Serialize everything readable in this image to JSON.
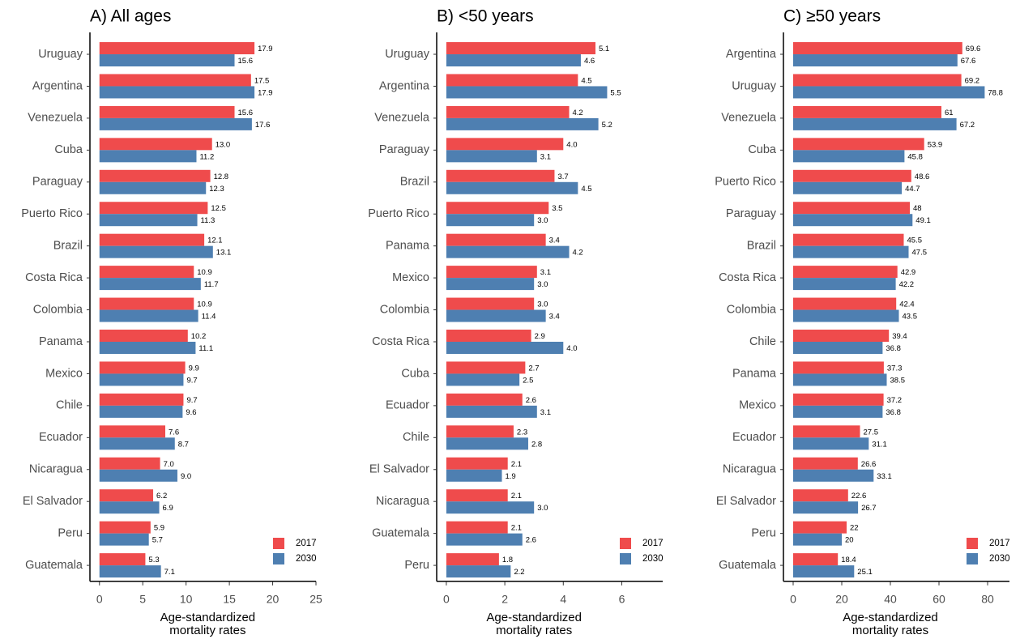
{
  "chart_data": [
    {
      "type": "bar",
      "orientation": "horizontal",
      "title": "A) All ages",
      "xlabel": "Age-standardized mortality rates",
      "categories": [
        "Uruguay",
        "Argentina",
        "Venezuela",
        "Cuba",
        "Paraguay",
        "Puerto Rico",
        "Brazil",
        "Costa Rica",
        "Colombia",
        "Panama",
        "Mexico",
        "Chile",
        "Ecuador",
        "Nicaragua",
        "El Salvador",
        "Peru",
        "Guatemala"
      ],
      "series": [
        {
          "name": "2017",
          "color": "#ef4b4c",
          "values": [
            17.9,
            17.5,
            15.6,
            13.0,
            12.8,
            12.5,
            12.1,
            10.9,
            10.9,
            10.2,
            9.9,
            9.7,
            7.6,
            7.0,
            6.2,
            5.9,
            5.3
          ],
          "value_labels": [
            "17.9",
            "17.5",
            "15.6",
            "13.0",
            "12.8",
            "12.5",
            "12.1",
            "10.9",
            "10.9",
            "10.2",
            "9.9",
            "9.7",
            "7.6",
            "7.0",
            "6.2",
            "5.9",
            "5.3"
          ]
        },
        {
          "name": "2030",
          "color": "#4e7fb1",
          "values": [
            15.6,
            17.9,
            17.6,
            11.2,
            12.3,
            11.3,
            13.1,
            11.7,
            11.4,
            11.1,
            9.7,
            9.6,
            8.7,
            9.0,
            6.9,
            5.7,
            7.1
          ],
          "value_labels": [
            "15.6",
            "17.9",
            "17.6",
            "11.2",
            "12.3",
            "11.3",
            "13.1",
            "11.7",
            "11.4",
            "11.1",
            "9.7",
            "9.6",
            "8.7",
            "9.0",
            "6.9",
            "5.7",
            "7.1"
          ]
        }
      ],
      "xlim": [
        -1.1,
        25
      ],
      "xticks": [
        0,
        5,
        10,
        15,
        20,
        25
      ],
      "legend": "bottom-right"
    },
    {
      "type": "bar",
      "orientation": "horizontal",
      "title": "B) <50 years",
      "xlabel": "Age-standardized mortality rates",
      "categories": [
        "Uruguay",
        "Argentina",
        "Venezuela",
        "Paraguay",
        "Brazil",
        "Puerto Rico",
        "Panama",
        "Mexico",
        "Colombia",
        "Costa Rica",
        "Cuba",
        "Ecuador",
        "Chile",
        "El Salvador",
        "Nicaragua",
        "Guatemala",
        "Peru"
      ],
      "series": [
        {
          "name": "2017",
          "color": "#ef4b4c",
          "values": [
            5.1,
            4.5,
            4.2,
            4.0,
            3.7,
            3.5,
            3.4,
            3.1,
            3.0,
            2.9,
            2.7,
            2.6,
            2.3,
            2.1,
            2.1,
            2.1,
            1.8
          ],
          "value_labels": [
            "5.1",
            "4.5",
            "4.2",
            "4.0",
            "3.7",
            "3.5",
            "3.4",
            "3.1",
            "3.0",
            "2.9",
            "2.7",
            "2.6",
            "2.3",
            "2.1",
            "2.1",
            "2.1",
            "1.8"
          ]
        },
        {
          "name": "2030",
          "color": "#4e7fb1",
          "values": [
            4.6,
            5.5,
            5.2,
            3.1,
            4.5,
            3.0,
            4.2,
            3.0,
            3.4,
            4.0,
            2.5,
            3.1,
            2.8,
            1.9,
            3.0,
            2.6,
            2.2
          ],
          "value_labels": [
            "4.6",
            "5.5",
            "5.2",
            "3.1",
            "4.5",
            "3.0",
            "4.2",
            "3.0",
            "3.4",
            "4.0",
            "2.5",
            "3.1",
            "2.8",
            "1.9",
            "3.0",
            "2.6",
            "2.2"
          ]
        }
      ],
      "xlim": [
        -0.33,
        7.4
      ],
      "xticks": [
        0,
        2,
        4,
        6
      ],
      "legend": "bottom-right"
    },
    {
      "type": "bar",
      "orientation": "horizontal",
      "title": "C) ≥50 years",
      "xlabel": "Age-standardized mortality rates",
      "categories": [
        "Argentina",
        "Uruguay",
        "Venezuela",
        "Cuba",
        "Puerto Rico",
        "Paraguay",
        "Brazil",
        "Costa Rica",
        "Colombia",
        "Chile",
        "Panama",
        "Mexico",
        "Ecuador",
        "Nicaragua",
        "El Salvador",
        "Peru",
        "Guatemala"
      ],
      "series": [
        {
          "name": "2017",
          "color": "#ef4b4c",
          "values": [
            69.6,
            69.2,
            61,
            53.9,
            48.6,
            48,
            45.5,
            42.9,
            42.4,
            39.4,
            37.3,
            37.2,
            27.5,
            26.6,
            22.6,
            22,
            18.4
          ]
        },
        {
          "name": "2030",
          "color": "#4e7fb1",
          "values": [
            67.6,
            78.8,
            67.2,
            45.8,
            44.7,
            49.1,
            47.5,
            42.2,
            43.5,
            36.8,
            38.5,
            36.8,
            31.1,
            33.1,
            26.7,
            20,
            25.1
          ]
        }
      ],
      "xlim": [
        -4,
        89
      ],
      "xticks": [
        0,
        20,
        40,
        60,
        80
      ],
      "legend": "bottom-right"
    }
  ]
}
